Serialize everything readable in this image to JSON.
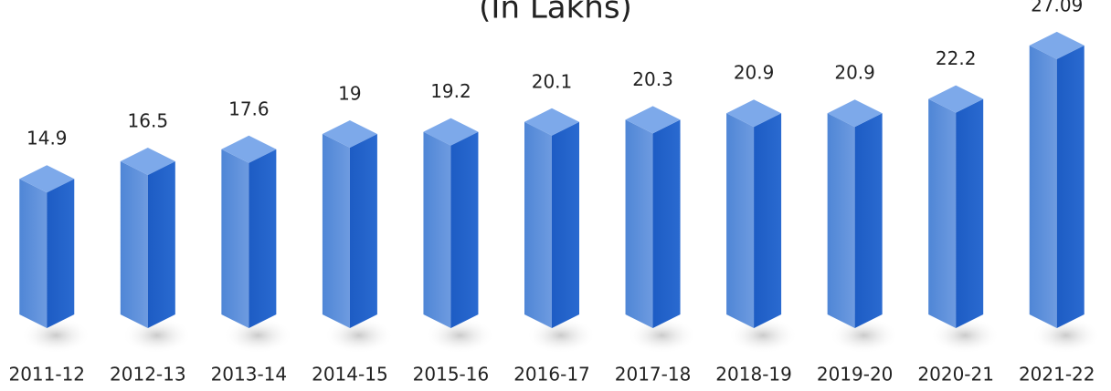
{
  "chart_data": {
    "type": "bar3d",
    "title": "(In Lakhs)",
    "categories": [
      "2011-12",
      "2012-13",
      "2013-14",
      "2014-15",
      "2015-16",
      "2016-17",
      "2017-18",
      "2018-19",
      "2019-20",
      "2020-21",
      "2021-22"
    ],
    "values": [
      14.9,
      16.5,
      17.6,
      19,
      19.2,
      20.1,
      20.3,
      20.9,
      20.9,
      22.2,
      27.09
    ],
    "color": "#2f6fd0"
  }
}
